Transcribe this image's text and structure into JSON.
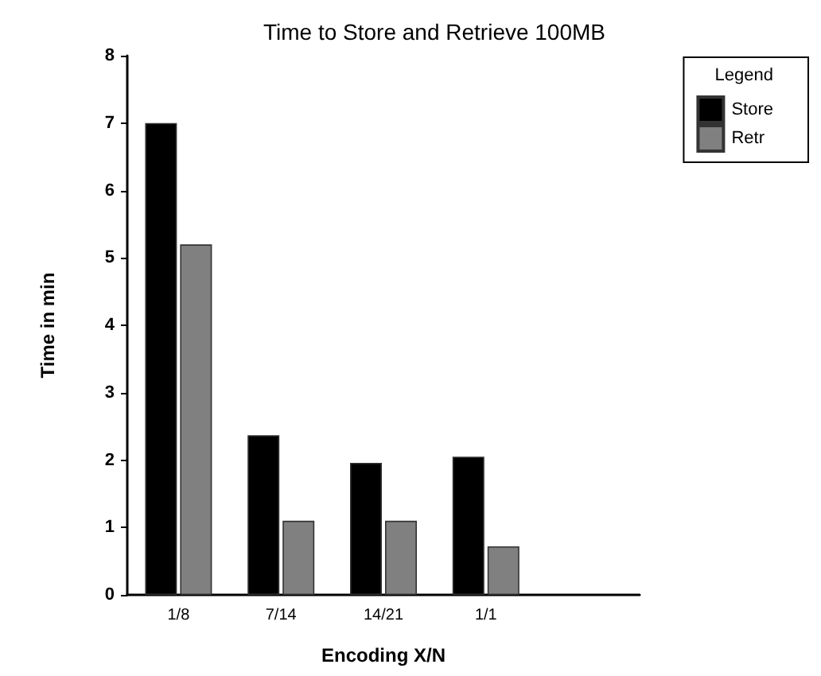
{
  "chart_data": {
    "type": "bar",
    "title": "Time to Store and Retrieve 100MB",
    "xlabel": "Encoding X/N",
    "ylabel": "Time in min",
    "legend_title": "Legend",
    "categories": [
      "1/8",
      "7/14",
      "14/21",
      "1/1",
      null
    ],
    "series": [
      {
        "name": "Store",
        "color": "#000000",
        "values": [
          7.0,
          2.37,
          1.96,
          2.05,
          null
        ]
      },
      {
        "name": "Retr",
        "color": "#808080",
        "values": [
          5.2,
          1.1,
          1.1,
          0.72,
          null
        ]
      }
    ],
    "ylim": [
      0,
      8
    ],
    "yticks": [
      0,
      1,
      2,
      3,
      4,
      5,
      6,
      7,
      8
    ],
    "grid": false,
    "legend": "top right"
  }
}
